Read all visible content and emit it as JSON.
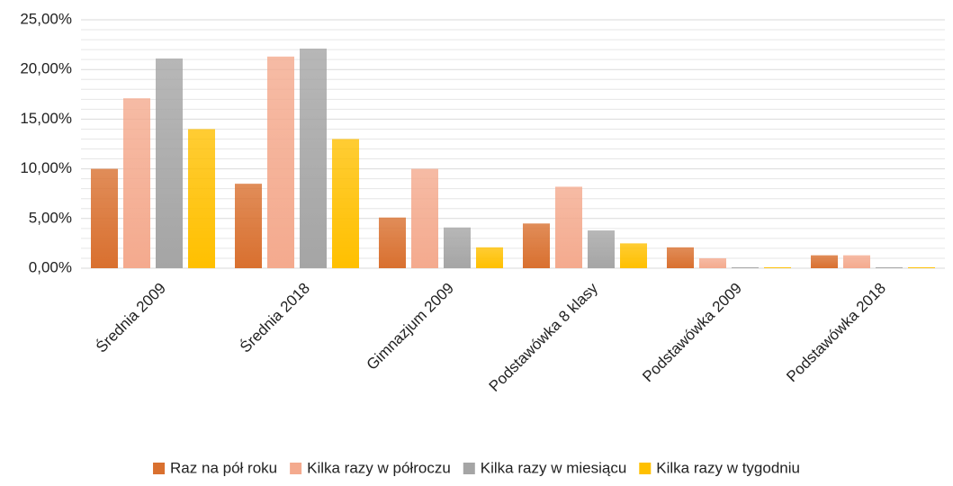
{
  "chart_data": {
    "type": "bar",
    "categories": [
      "Średnia 2009",
      "Średnia 2018",
      "Gimnazjum 2009",
      "Podstawówka 8 klasy",
      "Podstawówka 2009",
      "Podstawówka 2018"
    ],
    "series": [
      {
        "name": "Raz na pół roku",
        "color": "#d9702f",
        "values": [
          10.0,
          8.5,
          5.1,
          4.5,
          2.1,
          1.3
        ]
      },
      {
        "name": "Kilka razy w półroczu",
        "color": "#f4aa8e",
        "values": [
          17.1,
          21.3,
          10.0,
          8.2,
          1.0,
          1.3
        ]
      },
      {
        "name": "Kilka razy w miesiącu",
        "color": "#a5a5a5",
        "values": [
          21.1,
          22.1,
          4.1,
          3.8,
          0.1,
          0.1
        ]
      },
      {
        "name": "Kilka razy w tygodniu",
        "color": "#ffc000",
        "values": [
          14.0,
          13.0,
          2.1,
          2.5,
          0.1,
          0.1
        ]
      }
    ],
    "ylim": [
      0,
      25
    ],
    "yticks": [
      {
        "value": 0,
        "label": "0,00%"
      },
      {
        "value": 5,
        "label": "5,00%"
      },
      {
        "value": 10,
        "label": "10,00%"
      },
      {
        "value": 15,
        "label": "15,00%"
      },
      {
        "value": 20,
        "label": "20,00%"
      },
      {
        "value": 25,
        "label": "25,00%"
      }
    ],
    "minor_yticks": [
      1,
      2,
      3,
      4,
      6,
      7,
      8,
      9,
      11,
      12,
      13,
      14,
      16,
      17,
      18,
      19,
      21,
      22,
      23,
      24
    ],
    "grid": true,
    "legend": "bottom"
  }
}
